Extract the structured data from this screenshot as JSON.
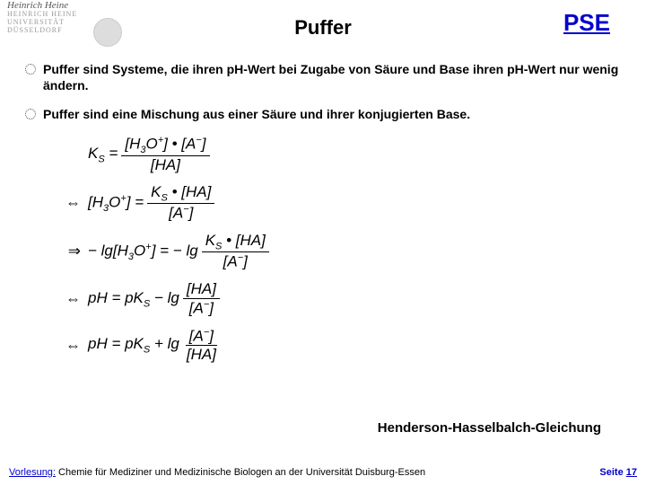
{
  "header": {
    "logo": {
      "line1": "Heinrich Heine",
      "line2": "HEINRICH HEINE",
      "line3": "UNIVERSITÄT",
      "line4": "DÜSSELDORF"
    },
    "title": "Puffer",
    "pse": "PSE"
  },
  "bullets": [
    "Puffer sind Systeme, die ihren pH-Wert bei Zugabe von Säure und Base ihren pH-Wert nur wenig ändern.",
    "Puffer sind eine Mischung aus einer Säure und ihrer konjugierten Base."
  ],
  "equations": {
    "eq1": {
      "lhs_sub": "S",
      "num_l": "[H",
      "num_l_sub": "3",
      "num_l_sup": "+",
      "dot": "•",
      "num_r": "[A",
      "num_r_sup": "−",
      "den": "[HA]"
    },
    "eq2": {
      "sym": "⇔",
      "lhs": "[H",
      "lhs_sub": "3",
      "lhs_sup": "+",
      "num": "K",
      "num_sub": "S",
      "dot": "•",
      "num_r": "[HA]",
      "den": "[A",
      "den_sup": "−"
    },
    "eq3": {
      "sym": "⇒",
      "lhs": "− lg[H",
      "lhs_sub": "3",
      "lhs_sup": "+",
      "rhs": "− lg",
      "num": "K",
      "num_sub": "S",
      "dot": "•",
      "num_r": "[HA]",
      "den": "[A",
      "den_sup": "−"
    },
    "eq4": {
      "sym": "⇔",
      "lhs": "pH = pK",
      "lhs_sub": "S",
      "mid": "− lg",
      "num": "[HA]",
      "den": "[A",
      "den_sup": "−"
    },
    "eq5": {
      "sym": "⇔",
      "lhs": "pH = pK",
      "lhs_sub": "S",
      "mid": "+ lg",
      "num": "[A",
      "num_sup": "−",
      "den": "[HA]"
    }
  },
  "hh_label": "Henderson-Hasselbalch-Gleichung",
  "footer": {
    "lecture_label": "Vorlesung:",
    "lecture_text": "Chemie für Mediziner und Medizinische Biologen an der Universität Duisburg-Essen",
    "page_label": "Seite",
    "page_num": "17"
  },
  "colors": {
    "link": "#0000cc",
    "text": "#000000",
    "bg": "#ffffff"
  }
}
